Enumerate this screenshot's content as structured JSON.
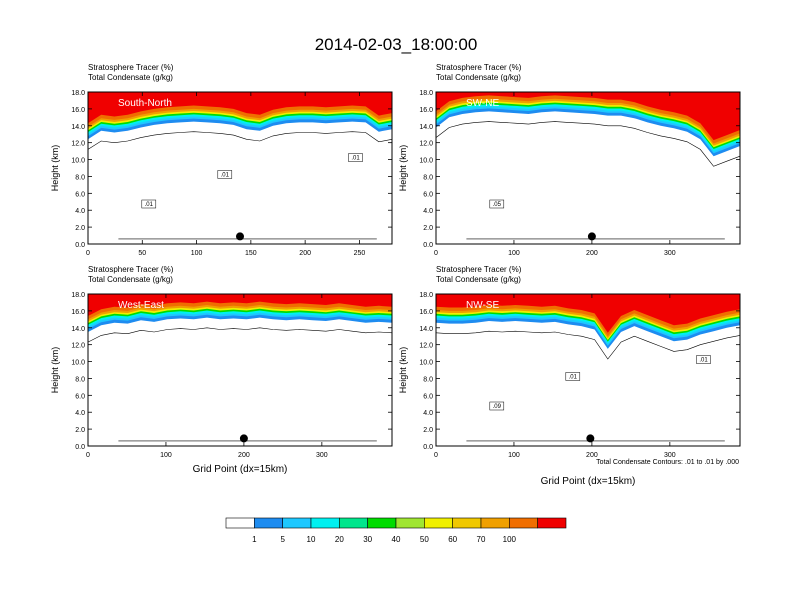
{
  "figure": {
    "title": "2014-02-03_18:00:00",
    "footnote": "Total Condensate Contours: .01 to .01 by .000"
  },
  "colorbar": {
    "labels": [
      "1",
      "5",
      "10",
      "20",
      "30",
      "40",
      "50",
      "60",
      "70",
      "100"
    ],
    "colors": [
      "#ffffff",
      "#1e8cf0",
      "#1ec8ff",
      "#00f0f0",
      "#00e68c",
      "#00dc00",
      "#a0e632",
      "#f0f000",
      "#f0c800",
      "#f0a000",
      "#f06e00",
      "#f00000"
    ]
  },
  "chart_data": [
    {
      "type": "heatmap",
      "subtitle_left": "Stratosphere Tracer   (%)",
      "subtitle_left2": "Total Condensate   (g/kg)",
      "panel_label": "South-North",
      "ylabel": "Height (km)",
      "xlabel": "",
      "xlim": [
        0,
        280
      ],
      "ylim": [
        0,
        18
      ],
      "xticks": [
        "0",
        "50",
        "100",
        "150",
        "200",
        "250"
      ],
      "yticks": [
        "0.0",
        "2.0",
        "4.0",
        "6.0",
        "8.0",
        "10.0",
        "12.0",
        "14.0",
        "16.0",
        "18.0"
      ],
      "tracer_base_km": [
        12.4,
        13.4,
        13.2,
        13.4,
        13.8,
        14.1,
        14.3,
        14.4,
        14.5,
        14.4,
        14.3,
        14.1,
        13.6,
        13.4,
        14.0,
        14.3,
        14.4,
        14.4,
        14.3,
        14.4,
        14.5,
        14.4,
        13.3,
        13.6
      ],
      "contour_labels": [
        ".01",
        ".01",
        ".01"
      ],
      "marker_x": 140
    },
    {
      "type": "heatmap",
      "subtitle_left": "Stratosphere Tracer   (%)",
      "subtitle_left2": "Total Condensate   (g/kg)",
      "panel_label": "SW-NE",
      "ylabel": "Height (km)",
      "xlabel": "",
      "xlim": [
        0,
        390
      ],
      "ylim": [
        0,
        18
      ],
      "xticks": [
        "0",
        "100",
        "200",
        "300"
      ],
      "yticks": [
        "0.0",
        "2.0",
        "4.0",
        "6.0",
        "8.0",
        "10.0",
        "12.0",
        "14.0",
        "16.0",
        "18.0"
      ],
      "tracer_base_km": [
        13.8,
        15.0,
        15.4,
        15.6,
        15.7,
        15.6,
        15.5,
        15.4,
        15.6,
        15.7,
        15.6,
        15.5,
        15.4,
        15.2,
        15.2,
        14.9,
        14.4,
        14.0,
        13.7,
        13.3,
        12.4,
        10.4,
        11.0,
        11.6
      ],
      "contour_labels": [
        ".05"
      ],
      "marker_x": 200
    },
    {
      "type": "heatmap",
      "subtitle_left": "Stratosphere Tracer   (%)",
      "subtitle_left2": "Total Condensate   (g/kg)",
      "panel_label": "West-East",
      "ylabel": "Height (km)",
      "xlabel": "Grid Point (dx=15km)",
      "xlim": [
        0,
        390
      ],
      "ylim": [
        0,
        18
      ],
      "xticks": [
        "0",
        "100",
        "200",
        "300"
      ],
      "yticks": [
        "0.0",
        "2.0",
        "4.0",
        "6.0",
        "8.0",
        "10.0",
        "12.0",
        "14.0",
        "16.0",
        "18.0"
      ],
      "tracer_base_km": [
        13.5,
        14.3,
        14.6,
        14.5,
        14.9,
        14.7,
        15.0,
        15.1,
        15.0,
        15.2,
        15.0,
        15.1,
        15.0,
        15.2,
        15.0,
        14.9,
        15.0,
        14.9,
        14.8,
        15.0,
        14.8,
        14.6,
        14.7,
        14.6
      ],
      "contour_labels": [],
      "marker_x": 200
    },
    {
      "type": "heatmap",
      "subtitle_left": "Stratosphere Tracer   (%)",
      "subtitle_left2": "Total Condensate   (g/kg)",
      "panel_label": "NW-SE",
      "ylabel": "Height (km)",
      "xlabel": "Grid Point (dx=15km)",
      "xlim": [
        0,
        390
      ],
      "ylim": [
        0,
        18
      ],
      "xticks": [
        "0",
        "100",
        "200",
        "300"
      ],
      "yticks": [
        "0.0",
        "2.0",
        "4.0",
        "6.0",
        "8.0",
        "10.0",
        "12.0",
        "14.0",
        "16.0",
        "18.0"
      ],
      "tracer_base_km": [
        14.6,
        14.5,
        14.5,
        14.6,
        14.8,
        14.7,
        14.8,
        14.7,
        14.6,
        14.7,
        14.4,
        14.2,
        13.8,
        11.5,
        13.5,
        14.2,
        13.6,
        13.0,
        12.4,
        12.6,
        13.2,
        13.6,
        14.0,
        14.3
      ],
      "contour_labels": [
        ".09",
        ".01",
        ".01"
      ],
      "marker_x": 198
    }
  ]
}
